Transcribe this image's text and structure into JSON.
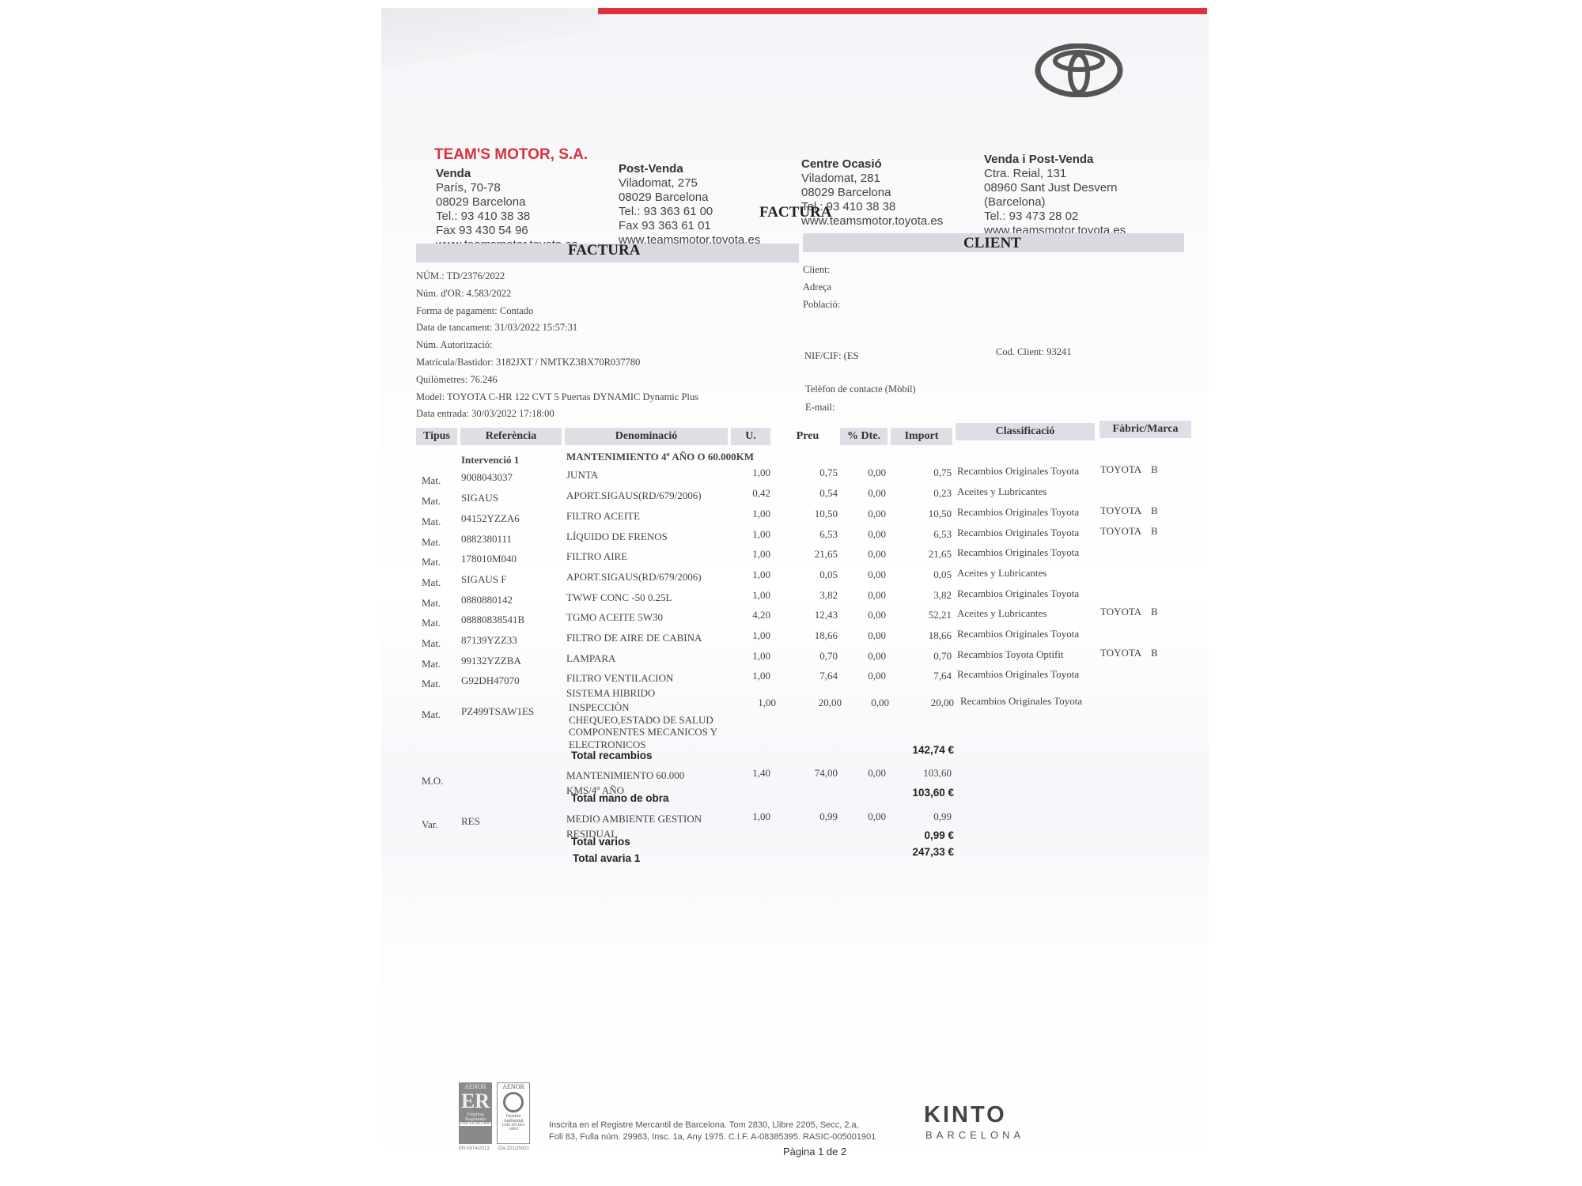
{
  "company": {
    "name": "TEAM'S MOTOR, S.A.",
    "accent": "#d8313d",
    "logo": "toyota-logo"
  },
  "locations": [
    {
      "title": "Venda",
      "lines": [
        "París, 70-78",
        "08029 Barcelona",
        "Tel.: 93 410 38 38",
        "Fax 93 430 54 96",
        "www.teamsmotor.toyota.es"
      ]
    },
    {
      "title": "Post-Venda",
      "lines": [
        "Viladomat, 275",
        "08029 Barcelona",
        "Tel.: 93 363 61 00",
        "Fax 93 363 61 01",
        "www.teamsmotor.toyota.es"
      ]
    },
    {
      "title": "Centre Ocasió",
      "lines": [
        "Viladomat, 281",
        "08029 Barcelona",
        "Tel.: 93 410 38 38",
        "www.teamsmotor.toyota.es"
      ]
    },
    {
      "title": "Venda i Post-Venda",
      "lines": [
        "Ctra. Reial, 131",
        "08960 Sant Just Desvern",
        "(Barcelona)",
        "Tel.: 93 473 28 02",
        "www.teamsmotor.toyota.es"
      ]
    }
  ],
  "factura_overlay": "FACTURA",
  "factura": {
    "title": "FACTURA",
    "fields": [
      "NÚM.: TD/2376/2022",
      "Núm. d'OR: 4.583/2022",
      "Forma de pagament: Contado",
      "Data de tancament: 31/03/2022  15:57:31",
      "Núm. Autorització:",
      "Matrícula/Bastidor: 3182JXT / NMTKZ3BX70R037780",
      "Quilòmetres: 76.246",
      "Model: TOYOTA C-HR 122 CVT 5 Puertas DYNAMIC Dynamic Plus",
      "Data entrada: 30/03/2022  17:18:00"
    ]
  },
  "client": {
    "title": "CLIENT",
    "client": "Client:",
    "adreca": "Adreça",
    "poblacio": "Població:",
    "nif": "NIF/CIF: (ES",
    "cod": "Cod. Client: 93241",
    "telefon": "Telèfon de contacte (Mòbil)",
    "email": "E-mail:"
  },
  "table": {
    "headers": [
      "Tipus",
      "Referència",
      "Denominació",
      "U.",
      "Preu",
      "% Dte.",
      "Import",
      "Classificació",
      "Fàbric/Marca"
    ],
    "intervention": {
      "label": "Intervenció 1",
      "title": "MANTENIMIENTO 4º AÑO O 60.000KM"
    },
    "rows": [
      {
        "tipus": "Mat.",
        "ref": "9008043037",
        "denom": [
          "JUNTA"
        ],
        "u": "1,00",
        "preu": "0,75",
        "dte": "0,00",
        "import": "0,75",
        "classif": "Recambios Originales Toyota",
        "marca": "TOYOTA",
        "marca2": "B"
      },
      {
        "tipus": "Mat.",
        "ref": "SIGAUS",
        "denom": [
          "APORT.SIGAUS(RD/679/2006)"
        ],
        "u": "0,42",
        "preu": "0,54",
        "dte": "0,00",
        "import": "0,23",
        "classif": "Aceites y Lubricantes",
        "marca": "",
        "marca2": ""
      },
      {
        "tipus": "Mat.",
        "ref": "04152YZZA6",
        "denom": [
          "FILTRO ACEITE"
        ],
        "u": "1,00",
        "preu": "10,50",
        "dte": "0,00",
        "import": "10,50",
        "classif": "Recambios Originales Toyota",
        "marca": "TOYOTA",
        "marca2": "B"
      },
      {
        "tipus": "Mat.",
        "ref": "0882380111",
        "denom": [
          "LÍQUIDO DE FRENOS"
        ],
        "u": "1,00",
        "preu": "6,53",
        "dte": "0,00",
        "import": "6,53",
        "classif": "Recambios Originales Toyota",
        "marca": "TOYOTA",
        "marca2": "B"
      },
      {
        "tipus": "Mat.",
        "ref": "178010M040",
        "denom": [
          "FILTRO AIRE"
        ],
        "u": "1,00",
        "preu": "21,65",
        "dte": "0,00",
        "import": "21,65",
        "classif": "Recambios Originales Toyota",
        "marca": "",
        "marca2": ""
      },
      {
        "tipus": "Mat.",
        "ref": "SIGAUS F",
        "denom": [
          "APORT.SIGAUS(RD/679/2006)"
        ],
        "u": "1,00",
        "preu": "0,05",
        "dte": "0,00",
        "import": "0,05",
        "classif": "Aceites y Lubricantes",
        "marca": "",
        "marca2": ""
      },
      {
        "tipus": "Mat.",
        "ref": "0880880142",
        "denom": [
          "TWWF CONC -50 0.25L"
        ],
        "u": "1,00",
        "preu": "3,82",
        "dte": "0,00",
        "import": "3,82",
        "classif": "Recambios Originales Toyota",
        "marca": "",
        "marca2": ""
      },
      {
        "tipus": "Mat.",
        "ref": "08880838541B",
        "denom": [
          "TGMO ACEITE 5W30"
        ],
        "u": "4,20",
        "preu": "12,43",
        "dte": "0,00",
        "import": "52,21",
        "classif": "Aceites y Lubricantes",
        "marca": "TOYOTA",
        "marca2": "B"
      },
      {
        "tipus": "Mat.",
        "ref": "87139YZZ33",
        "denom": [
          "FILTRO DE AIRE DE CABINA"
        ],
        "u": "1,00",
        "preu": "18,66",
        "dte": "0,00",
        "import": "18,66",
        "classif": "Recambios Originales Toyota",
        "marca": "",
        "marca2": ""
      },
      {
        "tipus": "Mat.",
        "ref": "99132YZZBA",
        "denom": [
          "LAMPARA"
        ],
        "u": "1,00",
        "preu": "0,70",
        "dte": "0,00",
        "import": "0,70",
        "classif": "Recambios Toyota Optifit",
        "marca": "TOYOTA",
        "marca2": "B"
      },
      {
        "tipus": "Mat.",
        "ref": "G92DH47070",
        "denom": [
          "FILTRO VENTILACION",
          "SISTEMA HIBRIDO"
        ],
        "u": "1,00",
        "preu": "7,64",
        "dte": "0,00",
        "import": "7,64",
        "classif": "Recambios Originales Toyota",
        "marca": "",
        "marca2": ""
      },
      {
        "tipus": "Mat.",
        "ref": "PZ499TSAW1ES",
        "denom": [
          "INSPECCIÒN",
          "CHEQUEO,ESTADO DE SALUD",
          "COMPONENTES MECANICOS Y",
          "ELECTRONICOS"
        ],
        "u": "1,00",
        "preu": "20,00",
        "dte": "0,00",
        "import": "20,00",
        "classif": "Recambios Originales Toyota",
        "marca": "",
        "marca2": ""
      }
    ],
    "total_recambios": {
      "label": "Total recambios",
      "value": "142,74 €"
    },
    "mo": {
      "tipus": "M.O.",
      "ref": "",
      "denom": [
        "MANTENIMIENTO 60.000",
        "KMS/4º AÑO"
      ],
      "u": "1,40",
      "preu": "74,00",
      "dte": "0,00",
      "import": "103,60"
    },
    "total_mo": {
      "label": "Total mano de obra",
      "value": "103,60 €"
    },
    "var": {
      "tipus": "Var.",
      "ref": "RES",
      "denom": [
        "MEDIO AMBIENTE GESTION",
        "RESIDUAL"
      ],
      "u": "1,00",
      "preu": "0,99",
      "dte": "0,00",
      "import": "0,99"
    },
    "total_varios": {
      "label": "Total varios",
      "value": "0,99 €"
    },
    "total_avaria": {
      "label": "Total avaria 1",
      "value": "247,33 €"
    }
  },
  "footer": {
    "aenor1": {
      "top": "AENOR",
      "mid": "Empresa Registrada",
      "code": "UNE-EN ISO 9001",
      "num": "ER-0374/2013"
    },
    "aenor2": {
      "top": "AENOR",
      "mid": "Gestión Ambiental",
      "code": "UNE-EN ISO 14001",
      "num": "GA-2012/0921"
    },
    "registry": [
      "Inscrita en el Registre Mercantil de Barcelona. Tom 2830, Llibre 2205, Secc, 2.a,",
      "Foli 83, Fulla núm. 29983, Insc. 1a, Any 1975. C.I.F. A-08385395. RASIC-005001901"
    ],
    "page": "Pàgina 1 de 2",
    "kinto": {
      "name": "KINTO",
      "city": "BARCELONA"
    }
  }
}
